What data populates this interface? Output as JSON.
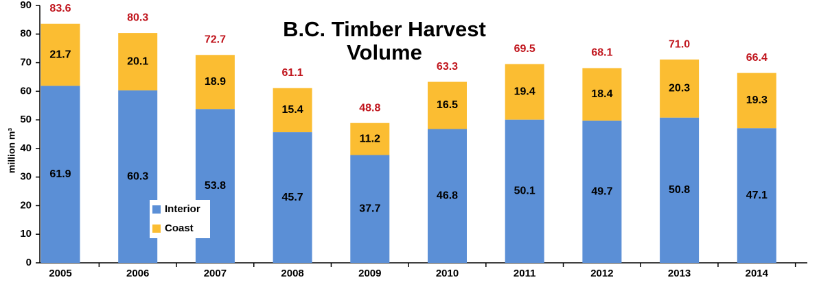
{
  "chart_data": {
    "type": "stacked_bar",
    "title": "B.C. Timber Harvest Volume",
    "y_label": "million m³",
    "categories": [
      "2005",
      "2006",
      "2007",
      "2008",
      "2009",
      "2010",
      "2011",
      "2012",
      "2013",
      "2014"
    ],
    "series": [
      {
        "name": "Interior",
        "color": "#5b8fd6",
        "values": [
          61.9,
          60.3,
          53.8,
          45.7,
          37.7,
          46.8,
          50.1,
          49.7,
          50.8,
          47.1
        ]
      },
      {
        "name": "Coast",
        "color": "#fbbd32",
        "values": [
          21.7,
          20.1,
          18.9,
          15.4,
          11.2,
          16.5,
          19.4,
          18.4,
          20.3,
          19.3
        ]
      }
    ],
    "totals": [
      83.6,
      80.3,
      72.7,
      61.1,
      48.8,
      63.3,
      69.5,
      68.1,
      71,
      66.4
    ],
    "total_labels": [
      "83.6",
      "80.3",
      "72.7",
      "61.1",
      "48.8",
      "63.3",
      "69.5",
      "68.1",
      "71.0",
      "66.4"
    ],
    "ylim": [
      0,
      90
    ],
    "yticks": [
      0,
      10,
      20,
      30,
      40,
      50,
      60,
      70,
      80,
      90
    ],
    "legend": "lower-left"
  }
}
